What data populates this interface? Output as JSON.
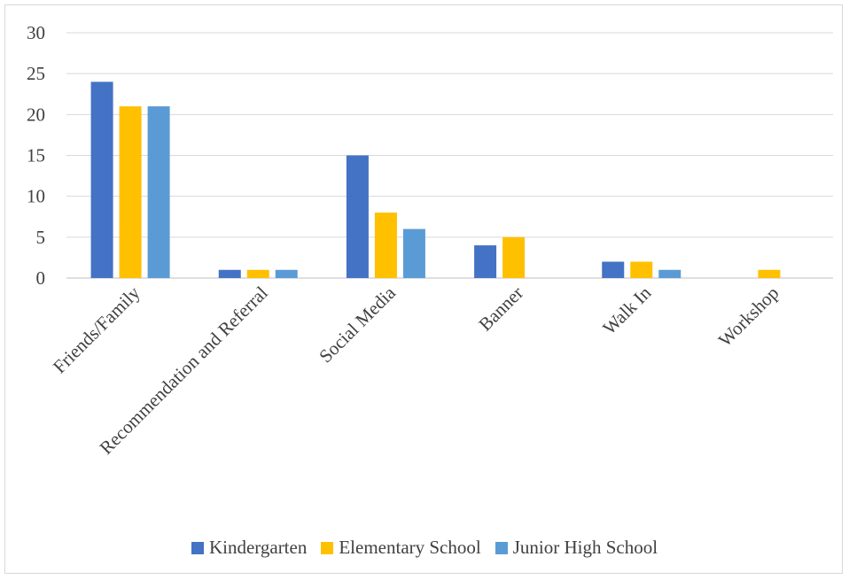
{
  "chart_data": {
    "type": "bar",
    "title": "",
    "xlabel": "",
    "ylabel": "",
    "categories": [
      "Friends/Family",
      "Recommendation and Referral",
      "Social Media",
      "Banner",
      "Walk In",
      "Workshop"
    ],
    "series": [
      {
        "name": "Kindergarten",
        "color": "#4472c4",
        "values": [
          24,
          1,
          15,
          4,
          2,
          0
        ]
      },
      {
        "name": "Elementary School",
        "color": "#ffc000",
        "values": [
          21,
          1,
          8,
          5,
          2,
          1
        ]
      },
      {
        "name": "Junior High School",
        "color": "#5b9bd5",
        "values": [
          21,
          1,
          6,
          0,
          1,
          0
        ]
      }
    ],
    "ylim": [
      0,
      30
    ],
    "yticks": [
      "0",
      "5",
      "10",
      "15",
      "20",
      "25",
      "30"
    ],
    "grid": true,
    "legend_position": "bottom"
  }
}
